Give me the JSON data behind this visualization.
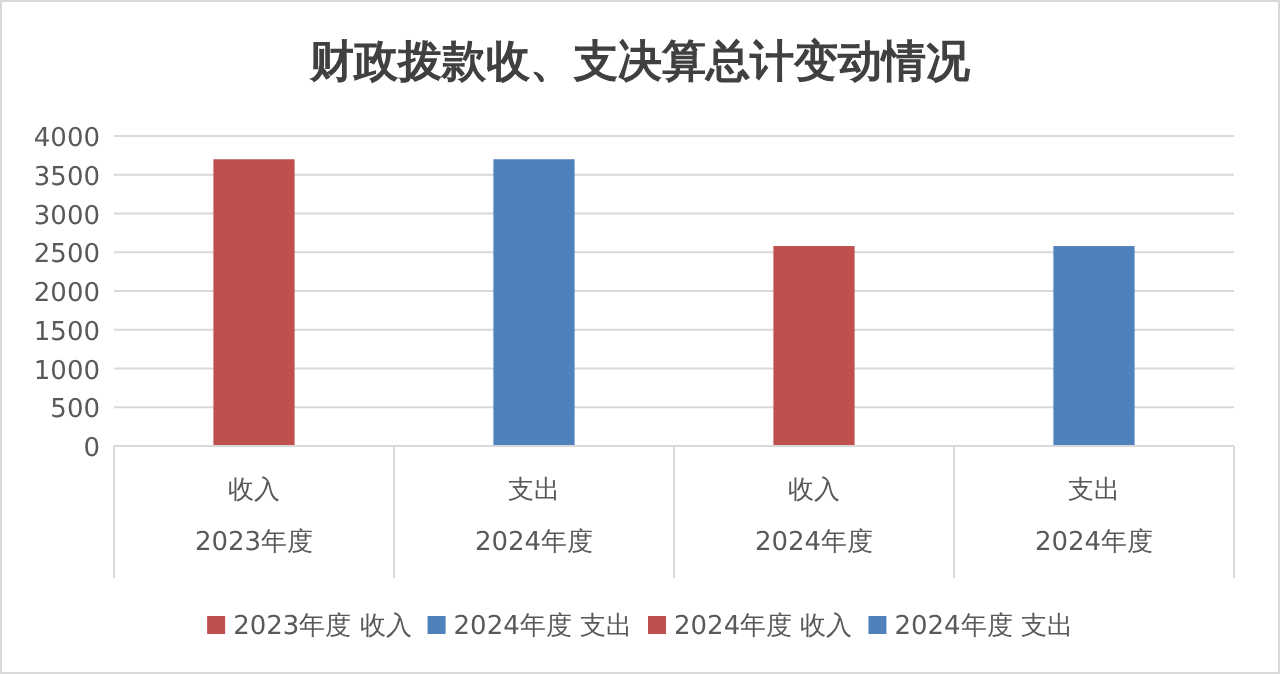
{
  "chart_data": {
    "type": "bar",
    "title": "财政拨款收、支决算总计变动情况",
    "categories": [
      "收入\n2023年度",
      "支出\n2024年度",
      "收入\n2024年度",
      "支出\n2024年度"
    ],
    "series": [
      {
        "name": "2023年度 收入",
        "color": "#c0504d",
        "values": [
          3700,
          null,
          null,
          null
        ]
      },
      {
        "name": "2024年度 支出",
        "color": "#4f81bd",
        "values": [
          null,
          3700,
          null,
          null
        ]
      },
      {
        "name": "2024年度 收入",
        "color": "#c0504d",
        "values": [
          null,
          null,
          2580,
          null
        ]
      },
      {
        "name": "2024年度 支出",
        "color": "#4f81bd",
        "values": [
          null,
          null,
          null,
          2580
        ]
      }
    ],
    "ylim": [
      0,
      4000
    ],
    "yticks": [
      0,
      500,
      1000,
      1500,
      2000,
      2500,
      3000,
      3500,
      4000
    ],
    "grid": "y",
    "legend": "bottom"
  }
}
